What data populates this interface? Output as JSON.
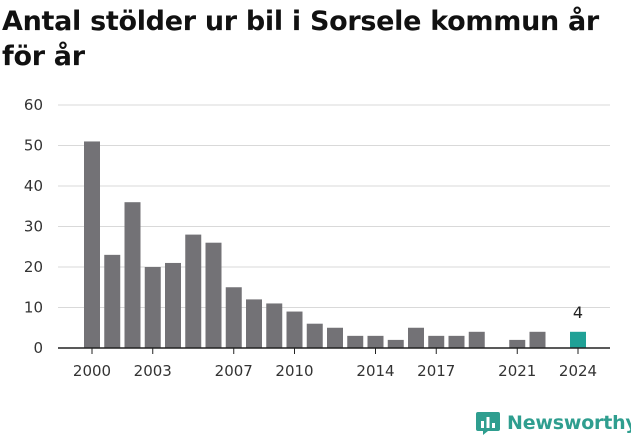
{
  "title": "Antal stölder ur bil i Sorsele kommun år för år",
  "brand": {
    "name": "Newsworthy",
    "icon": "newsworthy-logo-icon",
    "color": "#2f9e8f"
  },
  "chart_data": {
    "type": "bar",
    "title": "Antal stölder ur bil i Sorsele kommun år för år",
    "xlabel": "",
    "ylabel": "",
    "ylim": [
      0,
      60
    ],
    "yticks": [
      0,
      10,
      20,
      30,
      40,
      50,
      60
    ],
    "grid": true,
    "categories": [
      2000,
      2001,
      2002,
      2003,
      2004,
      2005,
      2006,
      2007,
      2008,
      2009,
      2010,
      2011,
      2012,
      2013,
      2014,
      2015,
      2016,
      2017,
      2018,
      2019,
      2020,
      2021,
      2022,
      2023,
      2024
    ],
    "xtick_labels": [
      "2000",
      "2003",
      "2007",
      "2010",
      "2014",
      "2017",
      "2021",
      "2024"
    ],
    "values": [
      51,
      23,
      36,
      20,
      21,
      28,
      26,
      15,
      12,
      11,
      9,
      6,
      5,
      3,
      3,
      2,
      5,
      3,
      3,
      4,
      0,
      2,
      4,
      0,
      4
    ],
    "highlight": {
      "category": 2024,
      "value": 4,
      "label": "4"
    },
    "colors": {
      "bar": "#737276",
      "highlight": "#20a196",
      "grid": "#d9d9d9",
      "axis": "#222222"
    }
  }
}
